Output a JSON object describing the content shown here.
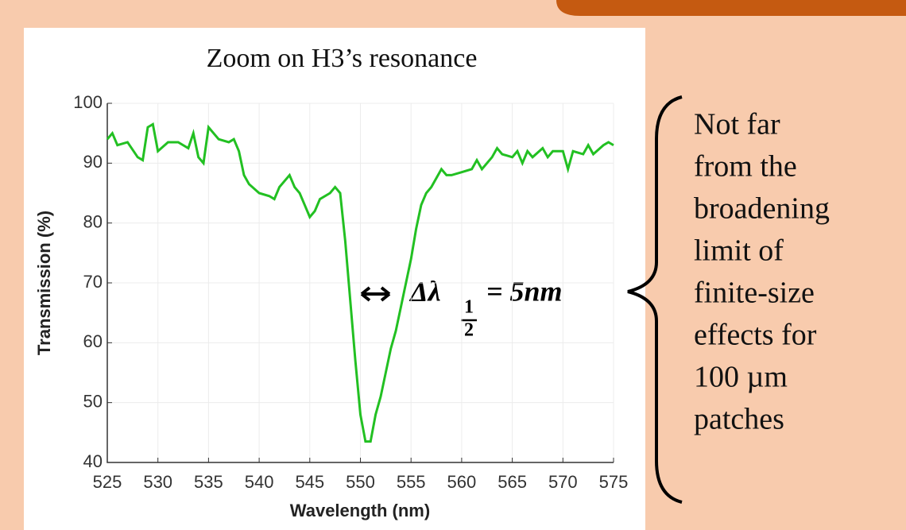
{
  "chart_data": {
    "type": "line",
    "title": "Zoom on H3’s resonance",
    "x_label": "Wavelength (nm)",
    "y_label": "Transmission (%)",
    "x": [
      525,
      525.5,
      526,
      527,
      528,
      528.5,
      529,
      529.5,
      530,
      531,
      532,
      533,
      533.5,
      534,
      534.5,
      535,
      536,
      537,
      537.5,
      538,
      538.5,
      539,
      540,
      541,
      541.5,
      542,
      543,
      543.5,
      544,
      544.5,
      545,
      545.5,
      546,
      547,
      547.5,
      548,
      548.5,
      549,
      549.5,
      550,
      550.5,
      551,
      551.5,
      552,
      552.5,
      553,
      553.5,
      554,
      554.5,
      555,
      555.5,
      556,
      556.5,
      557,
      558,
      558.5,
      559,
      560,
      561,
      561.5,
      562,
      563,
      563.5,
      564,
      565,
      565.5,
      566,
      566.5,
      567,
      568,
      568.5,
      569,
      570,
      570.5,
      571,
      572,
      572.5,
      573,
      574,
      574.5,
      575
    ],
    "series": [
      {
        "name": "Transmission",
        "color": "#22c022",
        "values": [
          94,
          95,
          93,
          93.5,
          91,
          90.5,
          96,
          96.5,
          92,
          93.5,
          93.5,
          92.5,
          95,
          91,
          90,
          96,
          94,
          93.5,
          94,
          92,
          88,
          86.5,
          85,
          84.5,
          84,
          86,
          88,
          86,
          85,
          83,
          81,
          82,
          84,
          85,
          86,
          85,
          77,
          67,
          57,
          48,
          43.5,
          43.5,
          48,
          51,
          55,
          59,
          62,
          66,
          70,
          74,
          79,
          83,
          85,
          86,
          89,
          88,
          88,
          88.5,
          89,
          90.5,
          89,
          91,
          92.5,
          91.5,
          91,
          92,
          90,
          92,
          91,
          92.5,
          91,
          92,
          92,
          89,
          92,
          91.5,
          93,
          91.5,
          93,
          93.5,
          93
        ]
      }
    ],
    "xlim": [
      525,
      575
    ],
    "ylim": [
      40,
      100
    ],
    "xticks": [
      525,
      530,
      535,
      540,
      545,
      550,
      555,
      560,
      565,
      570,
      575
    ],
    "yticks": [
      40,
      50,
      60,
      70,
      80,
      90,
      100
    ],
    "grid": true,
    "annotation": {
      "symbol": "Δλ",
      "sub_num": "1",
      "sub_den": "2",
      "text": "= 5nm"
    },
    "side_text": [
      "Not far",
      "from the",
      "broadening",
      "limit of",
      "finite-size",
      "effects for",
      "100 µm",
      "patches"
    ]
  }
}
